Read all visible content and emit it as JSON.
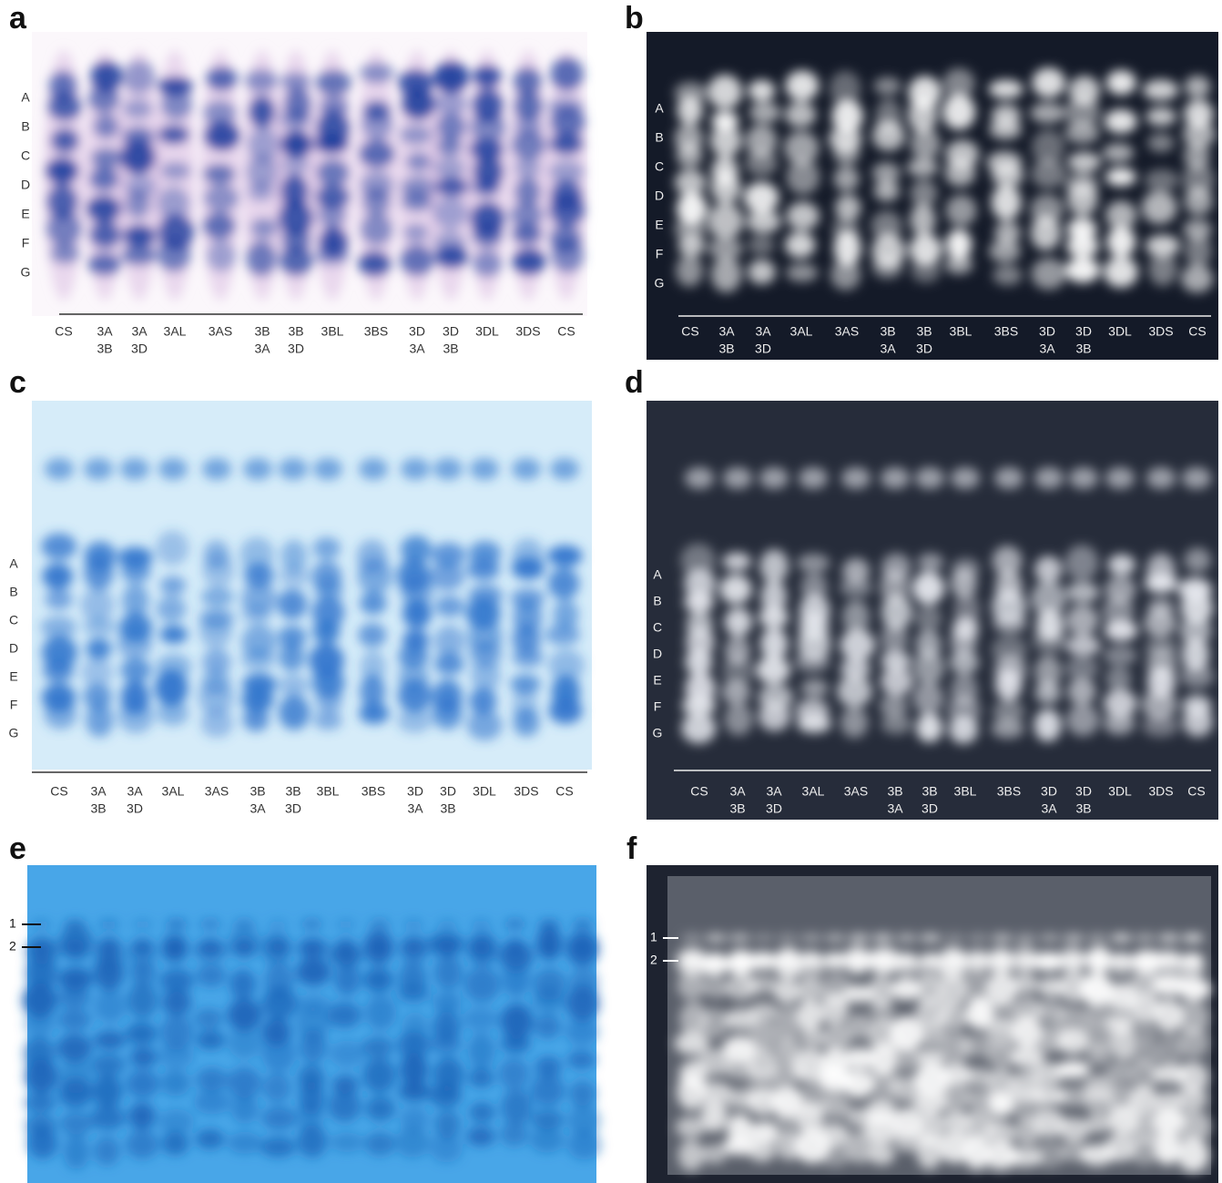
{
  "panels": [
    {
      "letter": "a",
      "band_labels": [
        "A",
        "B",
        "C",
        "D",
        "E",
        "F",
        "G"
      ],
      "lanes": [
        [
          "CS"
        ],
        [
          "3A",
          "3B"
        ],
        [
          "3A",
          "3D"
        ],
        [
          "3AL"
        ],
        [
          "3AS"
        ],
        [
          "3B",
          "3A"
        ],
        [
          "3B",
          "3D"
        ],
        [
          "3BL"
        ],
        [
          "3BS"
        ],
        [
          "3D",
          "3A"
        ],
        [
          "3D",
          "3B"
        ],
        [
          "3DL"
        ],
        [
          "3DS"
        ],
        [
          "CS"
        ]
      ]
    },
    {
      "letter": "b",
      "band_labels": [
        "A",
        "B",
        "C",
        "D",
        "E",
        "F",
        "G"
      ],
      "lanes": [
        [
          "CS"
        ],
        [
          "3A",
          "3B"
        ],
        [
          "3A",
          "3D"
        ],
        [
          "3AL"
        ],
        [
          "3AS"
        ],
        [
          "3B",
          "3A"
        ],
        [
          "3B",
          "3D"
        ],
        [
          "3BL"
        ],
        [
          "3BS"
        ],
        [
          "3D",
          "3A"
        ],
        [
          "3D",
          "3B"
        ],
        [
          "3DL"
        ],
        [
          "3DS"
        ],
        [
          "CS"
        ]
      ]
    },
    {
      "letter": "c",
      "band_labels": [
        "A",
        "B",
        "C",
        "D",
        "E",
        "F",
        "G"
      ],
      "lanes": [
        [
          "CS"
        ],
        [
          "3A",
          "3B"
        ],
        [
          "3A",
          "3D"
        ],
        [
          "3AL"
        ],
        [
          "3AS"
        ],
        [
          "3B",
          "3A"
        ],
        [
          "3B",
          "3D"
        ],
        [
          "3BL"
        ],
        [
          "3BS"
        ],
        [
          "3D",
          "3A"
        ],
        [
          "3D",
          "3B"
        ],
        [
          "3DL"
        ],
        [
          "3DS"
        ],
        [
          "CS"
        ]
      ]
    },
    {
      "letter": "d",
      "band_labels": [
        "A",
        "B",
        "C",
        "D",
        "E",
        "F",
        "G"
      ],
      "lanes": [
        [
          "CS"
        ],
        [
          "3A",
          "3B"
        ],
        [
          "3A",
          "3D"
        ],
        [
          "3AL"
        ],
        [
          "3AS"
        ],
        [
          "3B",
          "3A"
        ],
        [
          "3B",
          "3D"
        ],
        [
          "3BL"
        ],
        [
          "3BS"
        ],
        [
          "3D",
          "3A"
        ],
        [
          "3D",
          "3B"
        ],
        [
          "3DL"
        ],
        [
          "3DS"
        ],
        [
          "CS"
        ]
      ]
    },
    {
      "letter": "e",
      "markers": [
        "1",
        "2"
      ]
    },
    {
      "letter": "f",
      "markers": [
        "1",
        "2"
      ]
    }
  ]
}
